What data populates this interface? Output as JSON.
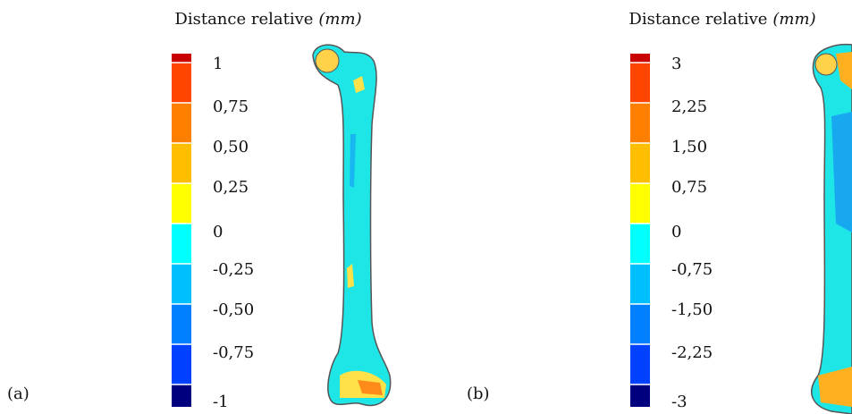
{
  "panels": [
    {
      "label": "(a)",
      "title": "Distance relative",
      "unit": "(mm)",
      "ticks": [
        "1",
        "0,75",
        "0,50",
        "0,25",
        "0",
        "-0,25",
        "-0,50",
        "-0,75",
        "-1"
      ]
    },
    {
      "label": "(b)",
      "title": "Distance relative",
      "unit": "(mm)",
      "ticks": [
        "3",
        "2,25",
        "1,50",
        "0,75",
        "0",
        "-0,75",
        "-1,50",
        "-2,25",
        "-3"
      ]
    }
  ]
}
